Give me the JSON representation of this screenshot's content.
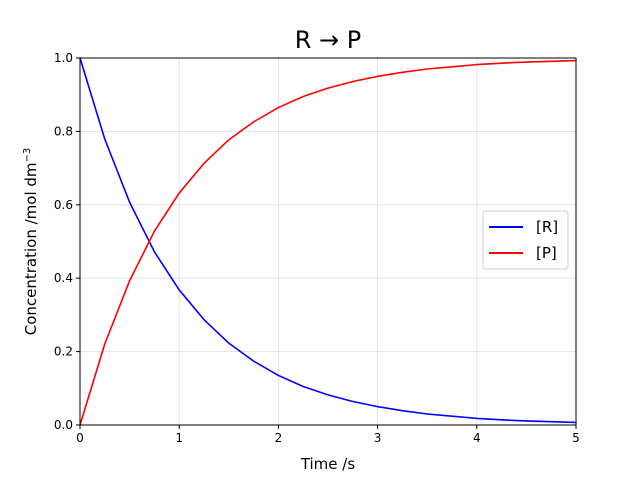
{
  "chart_data": {
    "type": "line",
    "title": "R → P",
    "xlabel": "Time /s",
    "ylabel": "Concentration /mol dm",
    "ylabel_superscript": "−3",
    "xlim": [
      0,
      5
    ],
    "ylim": [
      0,
      1
    ],
    "x_ticks": [
      0,
      1,
      2,
      3,
      4,
      5
    ],
    "x_tick_labels": [
      "0",
      "1",
      "2",
      "3",
      "4",
      "5"
    ],
    "y_ticks": [
      0,
      0.2,
      0.4,
      0.6,
      0.8,
      1.0
    ],
    "y_tick_labels": [
      "0.0",
      "0.2",
      "0.4",
      "0.6",
      "0.8",
      "1.0"
    ],
    "grid": true,
    "legend_position": "center-right",
    "x": [
      0,
      0.25,
      0.5,
      0.75,
      1,
      1.25,
      1.5,
      1.75,
      2,
      2.25,
      2.5,
      2.75,
      3,
      3.25,
      3.5,
      3.75,
      4,
      4.25,
      4.5,
      4.75,
      5
    ],
    "series": [
      {
        "name": "[R]",
        "color": "#0000ff",
        "values": [
          1.0,
          0.779,
          0.607,
          0.472,
          0.368,
          0.287,
          0.223,
          0.174,
          0.135,
          0.105,
          0.082,
          0.064,
          0.05,
          0.039,
          0.03,
          0.024,
          0.018,
          0.014,
          0.011,
          0.009,
          0.007
        ]
      },
      {
        "name": "[P]",
        "color": "#ff0000",
        "values": [
          0.0,
          0.221,
          0.393,
          0.528,
          0.632,
          0.713,
          0.777,
          0.826,
          0.865,
          0.895,
          0.918,
          0.936,
          0.95,
          0.961,
          0.97,
          0.976,
          0.982,
          0.986,
          0.989,
          0.991,
          0.993
        ]
      }
    ]
  }
}
